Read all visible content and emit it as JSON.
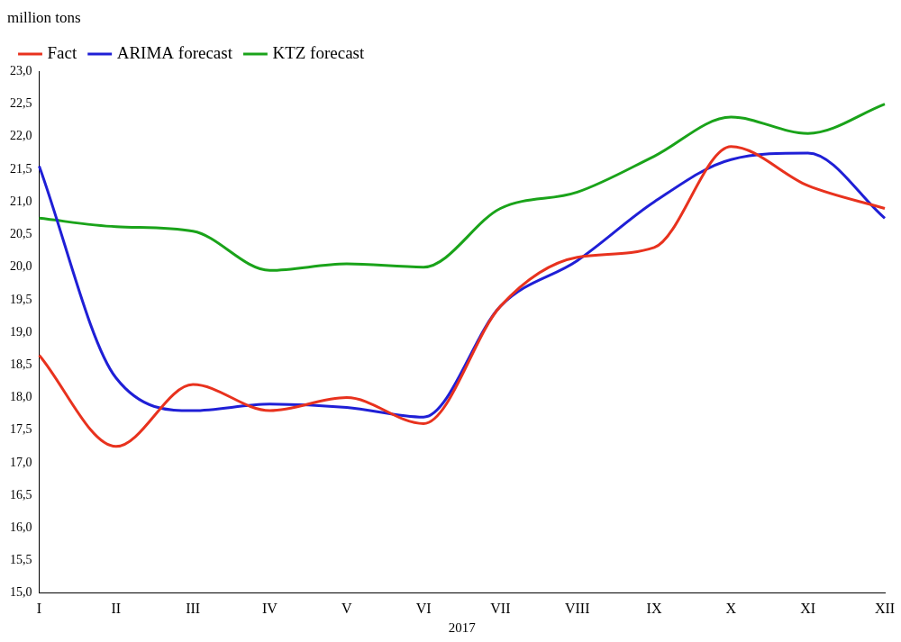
{
  "chart_data": {
    "type": "line",
    "y_label": "million tons",
    "x_label": "2017",
    "categories": [
      "I",
      "II",
      "III",
      "IV",
      "V",
      "VI",
      "VII",
      "VIII",
      "IX",
      "X",
      "XI",
      "XII"
    ],
    "series": [
      {
        "name": "Fact",
        "color": "#e8321e",
        "values": [
          18.65,
          17.25,
          18.2,
          17.8,
          18.0,
          17.6,
          19.4,
          20.15,
          20.3,
          21.85,
          21.25,
          20.9
        ]
      },
      {
        "name": "ARIMA forecast",
        "color": "#1f1fd6",
        "values": [
          21.55,
          18.3,
          17.8,
          17.9,
          17.85,
          17.7,
          19.4,
          20.1,
          21.0,
          21.65,
          21.75,
          20.75
        ]
      },
      {
        "name": "KTZ forecast",
        "color": "#1aa31a",
        "values": [
          20.75,
          20.62,
          20.55,
          19.95,
          20.05,
          20.0,
          20.9,
          21.15,
          21.7,
          22.3,
          22.05,
          22.5
        ]
      }
    ],
    "ylim": [
      15,
      23
    ],
    "yticks": [
      {
        "value": 15,
        "label": "15,0"
      },
      {
        "value": 15.5,
        "label": "15,5"
      },
      {
        "value": 16,
        "label": "16,0"
      },
      {
        "value": 16.5,
        "label": "16,5"
      },
      {
        "value": 17,
        "label": "17,0"
      },
      {
        "value": 17.5,
        "label": "17,5"
      },
      {
        "value": 18,
        "label": "18,0"
      },
      {
        "value": 18.5,
        "label": "18,5"
      },
      {
        "value": 19,
        "label": "19,0"
      },
      {
        "value": 19.5,
        "label": "19,5"
      },
      {
        "value": 20,
        "label": "20,0"
      },
      {
        "value": 20.5,
        "label": "20,5"
      },
      {
        "value": 21,
        "label": "21,0"
      },
      {
        "value": 21.5,
        "label": "21,5"
      },
      {
        "value": 22,
        "label": "22,0"
      },
      {
        "value": 22.5,
        "label": "22,5"
      },
      {
        "value": 23,
        "label": "23,0"
      }
    ],
    "grid": false,
    "legend": "top"
  }
}
